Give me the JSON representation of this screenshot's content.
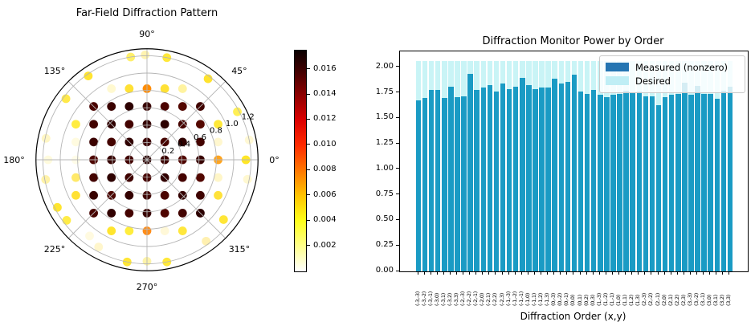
{
  "chart_data": [
    {
      "type": "scatter",
      "projection": "polar",
      "title": "Far-Field Diffraction Pattern",
      "angle_tick_labels": [
        "0°",
        "45°",
        "90°",
        "135°",
        "180°",
        "225°",
        "270°",
        "315°"
      ],
      "radial_tick_labels": [
        "0.2",
        "0.4",
        "0.6",
        "0.8",
        "1.0",
        "1.2"
      ],
      "radial_ticks": [
        0.2,
        0.4,
        0.6,
        0.8,
        1.0,
        1.2
      ],
      "r_max": 1.28,
      "grid_color": "#b5b5b5",
      "order_spacing_r": 0.205,
      "inner_grid_note": "orders (m,n) for m,n in -3..3, colored by power (dark = high ~0.014-0.017)",
      "inner_grid_rows_n3_to_nm3": [
        [
          "#4a0400",
          "#3a0200",
          "#2d0100",
          "#380200",
          "#4b0300",
          "#530700",
          "#400300"
        ],
        [
          "#420300",
          "#2f0100",
          "#430300",
          "#350200",
          "#2d0100",
          "#460400",
          "#540800"
        ],
        [
          "#3b0200",
          "#440300",
          "#300100",
          "#3d0200",
          "#470400",
          "#2f0100",
          "#440300"
        ],
        [
          "#4e0500",
          "#360200",
          "#420300",
          "#2b0100",
          "#3c0200",
          "#500600",
          "#380200"
        ],
        [
          "#430300",
          "#2e0100",
          "#3f0200",
          "#460400",
          "#310100",
          "#450300",
          "#520700"
        ],
        [
          "#390200",
          "#4c0500",
          "#340100",
          "#400300",
          "#490400",
          "#330100",
          "#3e0200"
        ],
        [
          "#470400",
          "#310100",
          "#440300",
          "#390200",
          "#4f0500",
          "#420300",
          "#2c0100"
        ]
      ],
      "mid_orders_mn_color": [
        [
          4,
          0,
          "#ffa41f"
        ],
        [
          4,
          1,
          "#fff7cf"
        ],
        [
          4,
          2,
          "#ffe838"
        ],
        [
          2,
          4,
          "#fff3a0"
        ],
        [
          1,
          4,
          "#ffe135"
        ],
        [
          0,
          4,
          "#ff8c00"
        ],
        [
          -1,
          4,
          "#ffe135"
        ],
        [
          -2,
          4,
          "#fff9d0"
        ],
        [
          -4,
          2,
          "#ffec40"
        ],
        [
          -4,
          1,
          "#fffbe0"
        ],
        [
          -4,
          0,
          "#fffce8"
        ],
        [
          -4,
          -1,
          "#ffe96a"
        ],
        [
          -4,
          -2,
          "#ffe135"
        ],
        [
          -2,
          -4,
          "#ffe52e"
        ],
        [
          -1,
          -4,
          "#ffed3d"
        ],
        [
          0,
          -4,
          "#ff8d1a"
        ],
        [
          1,
          -4,
          "#fff8d8"
        ],
        [
          2,
          -4,
          "#ffe73c"
        ],
        [
          4,
          -1,
          "#fff6c8"
        ],
        [
          4,
          -2,
          "#ffe23a"
        ]
      ],
      "outer_ring_theta_r_color": [
        [
          0,
          1.14,
          "#ffe627"
        ],
        [
          11,
          1.2,
          "#fff8d4"
        ],
        [
          28,
          1.18,
          "#ffef55"
        ],
        [
          53,
          1.17,
          "#ffe32e"
        ],
        [
          79,
          1.2,
          "#ffe839"
        ],
        [
          91,
          1.21,
          "#fff3b0"
        ],
        [
          99,
          1.2,
          "#ffef6a"
        ],
        [
          125,
          1.18,
          "#ffe431"
        ],
        [
          143,
          1.17,
          "#ffe94a"
        ],
        [
          168,
          1.19,
          "#fff6c4"
        ],
        [
          180,
          1.14,
          "#fffbdd"
        ],
        [
          191,
          1.19,
          "#fff2a8"
        ],
        [
          208,
          1.17,
          "#ffe52f"
        ],
        [
          217,
          1.16,
          "#ffec48"
        ],
        [
          233,
          1.1,
          "#fffae0"
        ],
        [
          241,
          1.15,
          "#fff6cc"
        ],
        [
          259,
          1.2,
          "#ffe635"
        ],
        [
          270,
          1.17,
          "#fdf3a9"
        ],
        [
          281,
          1.2,
          "#ffe83a"
        ],
        [
          306,
          1.16,
          "#fff0b0"
        ],
        [
          322,
          1.12,
          "#ffe636"
        ],
        [
          349,
          1.18,
          "#fff8d0"
        ]
      ],
      "colorbar": {
        "colormap": "hot_r",
        "tick_labels": [
          "0.002",
          "0.004",
          "0.006",
          "0.008",
          "0.010",
          "0.012",
          "0.014",
          "0.016"
        ],
        "ticks": [
          0.002,
          0.004,
          0.006,
          0.008,
          0.01,
          0.012,
          0.014,
          0.016
        ],
        "vmin": 0,
        "vmax": 0.0175
      }
    },
    {
      "type": "bar",
      "title": "Diffraction Monitor Power by Order",
      "xlabel": "Diffraction Order (x,y)",
      "ylim": [
        0,
        2.157
      ],
      "y_tick_labels": [
        "0.00",
        "0.25",
        "0.50",
        "0.75",
        "1.00",
        "1.25",
        "1.50",
        "1.75",
        "2.00"
      ],
      "y_ticks": [
        0,
        0.25,
        0.5,
        0.75,
        1.0,
        1.25,
        1.5,
        1.75,
        2.0
      ],
      "legend": [
        {
          "label": "Measured (nonzero)",
          "color": "#2575b2"
        },
        {
          "label": "Desired",
          "color": "#bfeef5"
        }
      ],
      "measured_color": "#1a9bc4",
      "desired_color": "#c9f4f6",
      "desired_value": 2.06,
      "categories": [
        "(-3,-3)",
        "(-3,-2)",
        "(-3,-1)",
        "(-3,0)",
        "(-3,1)",
        "(-3,2)",
        "(-3,3)",
        "(-2,-3)",
        "(-2,-2)",
        "(-2,-1)",
        "(-2,0)",
        "(-2,1)",
        "(-2,2)",
        "(-2,3)",
        "(-1,-3)",
        "(-1,-2)",
        "(-1,-1)",
        "(-1,0)",
        "(-1,1)",
        "(-1,2)",
        "(-1,3)",
        "(0,-3)",
        "(0,-2)",
        "(0,-1)",
        "(0,0)",
        "(0,1)",
        "(0,2)",
        "(0,3)",
        "(1,-3)",
        "(1,-2)",
        "(1,-1)",
        "(1,0)",
        "(1,1)",
        "(1,2)",
        "(1,3)",
        "(2,-3)",
        "(2,-2)",
        "(2,-1)",
        "(2,0)",
        "(2,1)",
        "(2,2)",
        "(2,3)",
        "(3,-3)",
        "(3,-2)",
        "(3,-1)",
        "(3,0)",
        "(3,1)",
        "(3,2)",
        "(3,3)"
      ],
      "measured": [
        1.68,
        1.7,
        1.78,
        1.78,
        1.7,
        1.81,
        1.71,
        1.72,
        1.94,
        1.78,
        1.8,
        1.83,
        1.76,
        1.84,
        1.79,
        1.81,
        1.9,
        1.83,
        1.79,
        1.8,
        1.8,
        1.89,
        1.84,
        1.86,
        1.93,
        1.76,
        1.74,
        1.78,
        1.73,
        1.71,
        1.73,
        1.74,
        1.77,
        1.75,
        1.76,
        1.72,
        1.72,
        1.63,
        1.71,
        1.73,
        1.74,
        1.85,
        1.73,
        1.82,
        1.74,
        1.74,
        1.69,
        1.77,
        1.81
      ]
    }
  ]
}
